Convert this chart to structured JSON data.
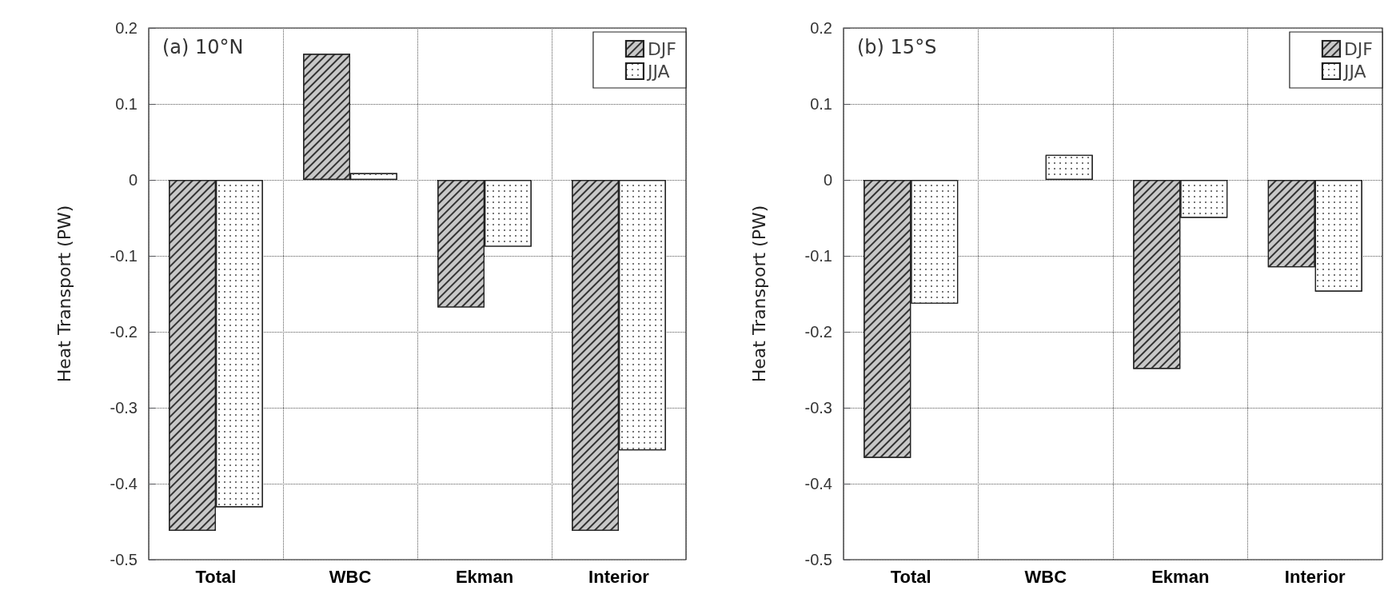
{
  "chart_data": [
    {
      "type": "bar",
      "title": "(a) 10°N",
      "ylabel": "Heat Transport (PW)",
      "categories": [
        "Total",
        "WBC",
        "Ekman",
        "Interior"
      ],
      "series": [
        {
          "name": "DJF",
          "color": "#c8c8c8",
          "values": [
            -0.462,
            0.166,
            -0.168,
            -0.462
          ]
        },
        {
          "name": "JJA",
          "color": "#ffffff",
          "values": [
            -0.431,
            0.009,
            -0.088,
            -0.356
          ]
        }
      ],
      "ylim": [
        -0.5,
        0.2
      ],
      "yticks": [
        -0.5,
        -0.4,
        -0.3,
        -0.2,
        -0.1,
        0,
        0.1,
        0.2
      ],
      "grid": true,
      "legend": "top right"
    },
    {
      "type": "bar",
      "title": "(b) 15°S",
      "ylabel": "Heat Transport (PW)",
      "categories": [
        "Total",
        "WBC",
        "Ekman",
        "Interior"
      ],
      "series": [
        {
          "name": "DJF",
          "color": "#c8c8c8",
          "values": [
            -0.366,
            null,
            -0.249,
            -0.115
          ]
        },
        {
          "name": "JJA",
          "color": "#ffffff",
          "values": [
            -0.163,
            0.033,
            -0.05,
            -0.147
          ]
        }
      ],
      "ylim": [
        -0.5,
        0.2
      ],
      "yticks": [
        -0.5,
        -0.4,
        -0.3,
        -0.2,
        -0.1,
        0,
        0.1,
        0.2
      ],
      "grid": true,
      "legend": "top right"
    }
  ]
}
